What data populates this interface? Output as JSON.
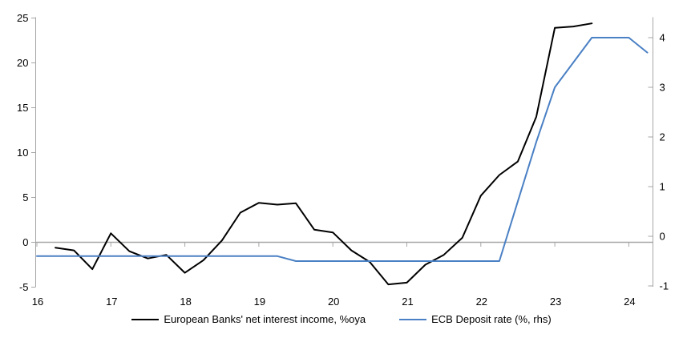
{
  "chart_data": {
    "type": "line",
    "title": "",
    "x_axis": {
      "min": 16,
      "max": 24.3,
      "ticks": [
        16,
        17,
        18,
        19,
        20,
        21,
        22,
        23,
        24
      ],
      "tick_labels": [
        "16",
        "17",
        "18",
        "19",
        "20",
        "21",
        "22",
        "23",
        "24"
      ]
    },
    "y_axis_left": {
      "min": -5,
      "max": 25,
      "ticks": [
        -5,
        0,
        5,
        10,
        15,
        20,
        25
      ],
      "tick_labels": [
        "-5",
        "0",
        "5",
        "10",
        "15",
        "20",
        "25"
      ]
    },
    "y_axis_right": {
      "min": -1.05,
      "max": 4.4,
      "ticks": [
        -1,
        0,
        1,
        2,
        3,
        4
      ],
      "tick_labels": [
        "-1",
        "0",
        "1",
        "2",
        "3",
        "4"
      ]
    },
    "grid": "zero-line-only",
    "legend_position": "bottom-center",
    "series": [
      {
        "name": "European Banks' net interest income, %oya",
        "axis": "left",
        "color": "#000000",
        "points": [
          [
            16.25,
            -0.6
          ],
          [
            16.5,
            -0.9
          ],
          [
            16.75,
            -3.0
          ],
          [
            17.0,
            1.0
          ],
          [
            17.25,
            -1.0
          ],
          [
            17.5,
            -1.8
          ],
          [
            17.75,
            -1.4
          ],
          [
            18.0,
            -3.4
          ],
          [
            18.25,
            -2.0
          ],
          [
            18.5,
            0.2
          ],
          [
            18.75,
            3.3
          ],
          [
            19.0,
            4.4
          ],
          [
            19.25,
            4.2
          ],
          [
            19.5,
            4.35
          ],
          [
            19.75,
            1.4
          ],
          [
            20.0,
            1.1
          ],
          [
            20.25,
            -0.9
          ],
          [
            20.5,
            -2.2
          ],
          [
            20.75,
            -4.7
          ],
          [
            21.0,
            -4.5
          ],
          [
            21.25,
            -2.5
          ],
          [
            21.5,
            -1.4
          ],
          [
            21.75,
            0.5
          ],
          [
            22.0,
            5.2
          ],
          [
            22.25,
            7.5
          ],
          [
            22.5,
            9.0
          ],
          [
            22.75,
            14.0
          ],
          [
            23.0,
            23.9
          ],
          [
            23.25,
            24.05
          ],
          [
            23.5,
            24.4
          ]
        ]
      },
      {
        "name": "ECB Deposit rate (%, rhs)",
        "axis": "right",
        "color": "#4a80c4",
        "points": [
          [
            16.0,
            -0.4
          ],
          [
            16.25,
            -0.4
          ],
          [
            16.5,
            -0.4
          ],
          [
            16.75,
            -0.4
          ],
          [
            17.0,
            -0.4
          ],
          [
            17.25,
            -0.4
          ],
          [
            17.5,
            -0.4
          ],
          [
            17.75,
            -0.4
          ],
          [
            18.0,
            -0.4
          ],
          [
            18.25,
            -0.4
          ],
          [
            18.5,
            -0.4
          ],
          [
            18.75,
            -0.4
          ],
          [
            19.0,
            -0.4
          ],
          [
            19.25,
            -0.4
          ],
          [
            19.5,
            -0.5
          ],
          [
            19.75,
            -0.5
          ],
          [
            20.0,
            -0.5
          ],
          [
            20.25,
            -0.5
          ],
          [
            20.5,
            -0.5
          ],
          [
            20.75,
            -0.5
          ],
          [
            21.0,
            -0.5
          ],
          [
            21.25,
            -0.5
          ],
          [
            21.5,
            -0.5
          ],
          [
            21.75,
            -0.5
          ],
          [
            22.0,
            -0.5
          ],
          [
            22.25,
            -0.5
          ],
          [
            22.5,
            0.7
          ],
          [
            22.75,
            1.9
          ],
          [
            23.0,
            3.0
          ],
          [
            23.25,
            3.5
          ],
          [
            23.5,
            4.0
          ],
          [
            23.75,
            4.0
          ],
          [
            24.0,
            4.0
          ],
          [
            24.25,
            3.7
          ]
        ]
      }
    ]
  },
  "legend": {
    "series1": "European Banks' net interest income, %oya",
    "series2": "ECB Deposit rate (%, rhs)"
  },
  "colors": {
    "line1": "#000000",
    "line2": "#4a80c4",
    "axis": "#a6a6a6",
    "text": "#000000",
    "background": "#ffffff"
  }
}
